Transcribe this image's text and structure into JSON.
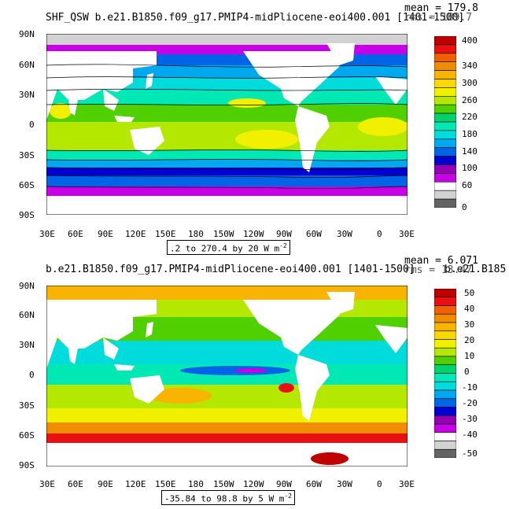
{
  "panels": [
    {
      "title": "SHF_QSW  b.e21.B1850.f09_g17.PMIP4-midPliocene-eoi400.001  [1401-1500]",
      "mean_label": "mean = 179.8",
      "rms_label": "rms = 189.7",
      "range_label": ".2 to 270.4 by 20  W m",
      "range_sup": "-2",
      "colorbar_ticks": [
        "400",
        "340",
        "300",
        "260",
        "220",
        "180",
        "140",
        "100",
        "60",
        "0"
      ],
      "colorbar_colors": [
        "#c00000",
        "#e81010",
        "#f06000",
        "#f08c00",
        "#f8b400",
        "#f8d800",
        "#f0f000",
        "#b4e800",
        "#50d000",
        "#00d26e",
        "#00e8b4",
        "#00dcdc",
        "#00a8f0",
        "#0064e6",
        "#0000d2",
        "#9600b4",
        "#c800e6",
        "#ffffff",
        "#d2d2d2",
        "#646464"
      ],
      "lat_labels": [
        "90N",
        "60N",
        "30N",
        "0",
        "30S",
        "60S",
        "90S"
      ],
      "lon_labels": [
        "30E",
        "60E",
        "90E",
        "120E",
        "150E",
        "180",
        "150W",
        "120W",
        "90W",
        "60W",
        "30W",
        "0",
        "30E"
      ]
    },
    {
      "title": "b.e21.B1850.f09_g17.PMIP4-midPliocene-eoi400.001  [1401-1500]",
      "mean_label": "mean = 6.071",
      "rms_label": "rms = 13.47",
      "rms_overlap": "b.e21.B185",
      "range_label": "-35.84 to 98.8 by 5  W m",
      "range_sup": "-2",
      "colorbar_ticks": [
        "50",
        "40",
        "30",
        "20",
        "10",
        "0",
        "-10",
        "-20",
        "-30",
        "-40",
        "-50"
      ],
      "colorbar_colors": [
        "#c00000",
        "#e81010",
        "#f06000",
        "#f08c00",
        "#f8b400",
        "#f8d800",
        "#f0f000",
        "#b4e800",
        "#50d000",
        "#00d26e",
        "#00e8b4",
        "#00dcdc",
        "#00a8f0",
        "#0064e6",
        "#0000d2",
        "#9600b4",
        "#c800e6",
        "#ffffff",
        "#d2d2d2",
        "#646464"
      ],
      "lat_labels": [
        "90N",
        "60N",
        "30N",
        "0",
        "30S",
        "60S",
        "90S"
      ],
      "lon_labels": [
        "30E",
        "60E",
        "90E",
        "120E",
        "150E",
        "180",
        "150W",
        "120W",
        "90W",
        "60W",
        "30W",
        "0",
        "30E"
      ]
    }
  ]
}
